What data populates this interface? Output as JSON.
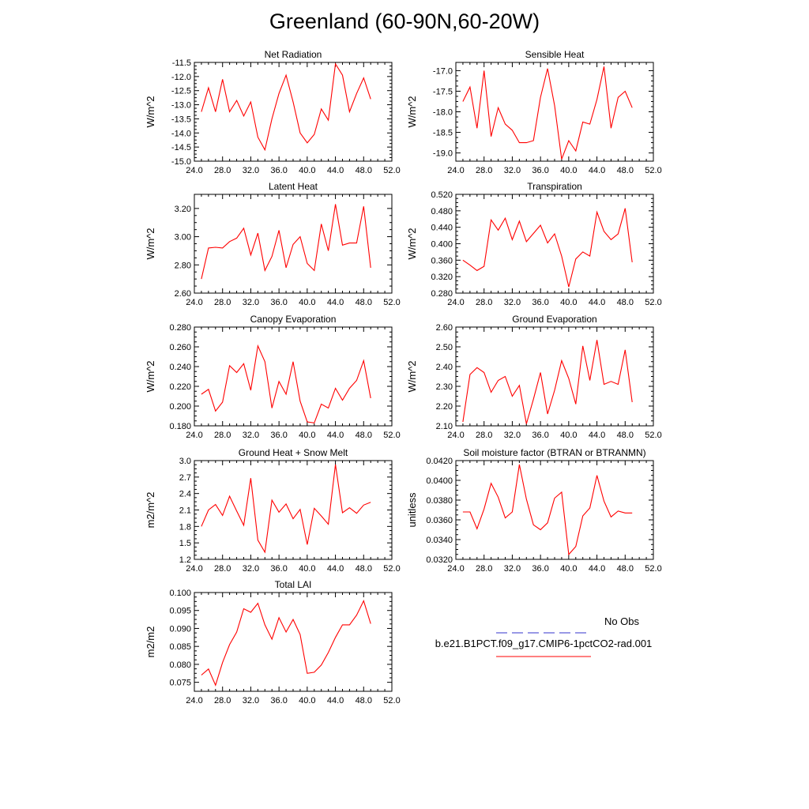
{
  "title": "Greenland (60-90N,60-20W)",
  "legend": {
    "entries": [
      {
        "label": "No Obs",
        "color": "#3333cc",
        "style": "dashed"
      },
      {
        "label": "b.e21.B1PCT.f09_g17.CMIP6-1pctCO2-rad.001",
        "color": "#ff0000",
        "style": "solid"
      }
    ]
  },
  "chart_data": [
    {
      "type": "line",
      "title": "Net Radiation",
      "ylabel": "W/m^2",
      "xlabel": "",
      "xlim": [
        24,
        52
      ],
      "ylim": [
        -15.0,
        -11.5
      ],
      "xticks": [
        "24.0",
        "28.0",
        "32.0",
        "36.0",
        "40.0",
        "44.0",
        "48.0",
        "52.0"
      ],
      "yticks": [
        "-11.5",
        "-12.0",
        "-12.5",
        "-13.0",
        "-13.5",
        "-14.0",
        "-14.5",
        "-15.0"
      ],
      "ytick_values": [
        -11.5,
        -12.0,
        -12.5,
        -13.0,
        -13.5,
        -14.0,
        -14.5,
        -15.0
      ],
      "series": [
        {
          "color": "#ff0000",
          "x": [
            25,
            26,
            27,
            28,
            29,
            30,
            31,
            32,
            33,
            34,
            35,
            36,
            37,
            38,
            39,
            40,
            41,
            42,
            43,
            44,
            45,
            46,
            47,
            48,
            49
          ],
          "values": [
            -13.25,
            -12.4,
            -13.25,
            -12.1,
            -13.25,
            -12.85,
            -13.4,
            -12.9,
            -14.15,
            -14.6,
            -13.5,
            -12.6,
            -11.95,
            -12.9,
            -14.0,
            -14.35,
            -14.05,
            -13.15,
            -13.55,
            -11.55,
            -11.95,
            -13.25,
            -12.6,
            -12.05,
            -12.8
          ]
        }
      ]
    },
    {
      "type": "line",
      "title": "Sensible Heat",
      "ylabel": "W/m^2",
      "xlabel": "",
      "xlim": [
        24,
        52
      ],
      "ylim": [
        -19.2,
        -16.8
      ],
      "xticks": [
        "24.0",
        "28.0",
        "32.0",
        "36.0",
        "40.0",
        "44.0",
        "48.0",
        "52.0"
      ],
      "yticks": [
        "-17.0",
        "-17.5",
        "-18.0",
        "-18.5",
        "-19.0"
      ],
      "ytick_values": [
        -17.0,
        -17.5,
        -18.0,
        -18.5,
        -19.0
      ],
      "series": [
        {
          "color": "#ff0000",
          "x": [
            25,
            26,
            27,
            28,
            29,
            30,
            31,
            32,
            33,
            34,
            35,
            36,
            37,
            38,
            39,
            40,
            41,
            42,
            43,
            44,
            45,
            46,
            47,
            48,
            49
          ],
          "values": [
            -17.75,
            -17.4,
            -18.4,
            -17.0,
            -18.6,
            -17.9,
            -18.3,
            -18.45,
            -18.75,
            -18.75,
            -18.7,
            -17.65,
            -16.95,
            -17.85,
            -19.15,
            -18.7,
            -18.95,
            -18.25,
            -18.3,
            -17.7,
            -16.9,
            -18.4,
            -17.65,
            -17.5,
            -17.9
          ]
        }
      ]
    },
    {
      "type": "line",
      "title": "Latent Heat",
      "ylabel": "W/m^2",
      "xlabel": "",
      "xlim": [
        24,
        52
      ],
      "ylim": [
        2.6,
        3.3
      ],
      "xticks": [
        "24.0",
        "28.0",
        "32.0",
        "36.0",
        "40.0",
        "44.0",
        "48.0",
        "52.0"
      ],
      "yticks": [
        "3.20",
        "3.00",
        "2.80",
        "2.60"
      ],
      "ytick_values": [
        3.2,
        3.0,
        2.8,
        2.6
      ],
      "series": [
        {
          "color": "#ff0000",
          "x": [
            25,
            26,
            27,
            28,
            29,
            30,
            31,
            32,
            33,
            34,
            35,
            36,
            37,
            38,
            39,
            40,
            41,
            42,
            43,
            44,
            45,
            46,
            47,
            48,
            49
          ],
          "values": [
            2.7,
            2.92,
            2.925,
            2.92,
            2.965,
            2.99,
            3.06,
            2.87,
            3.025,
            2.76,
            2.86,
            3.045,
            2.78,
            2.945,
            3.0,
            2.81,
            2.76,
            3.09,
            2.9,
            3.23,
            2.94,
            2.955,
            2.955,
            3.215,
            2.78
          ]
        }
      ]
    },
    {
      "type": "line",
      "title": "Transpiration",
      "ylabel": "W/m^2",
      "xlabel": "",
      "xlim": [
        24,
        52
      ],
      "ylim": [
        0.28,
        0.52
      ],
      "xticks": [
        "24.0",
        "28.0",
        "32.0",
        "36.0",
        "40.0",
        "44.0",
        "48.0",
        "52.0"
      ],
      "yticks": [
        "0.520",
        "0.480",
        "0.440",
        "0.400",
        "0.360",
        "0.320",
        "0.280"
      ],
      "ytick_values": [
        0.52,
        0.48,
        0.44,
        0.4,
        0.36,
        0.32,
        0.28
      ],
      "series": [
        {
          "color": "#ff0000",
          "x": [
            25,
            26,
            27,
            28,
            29,
            30,
            31,
            32,
            33,
            34,
            35,
            36,
            37,
            38,
            39,
            40,
            41,
            42,
            43,
            44,
            45,
            46,
            47,
            48,
            49
          ],
          "values": [
            0.36,
            0.348,
            0.335,
            0.345,
            0.458,
            0.433,
            0.462,
            0.41,
            0.455,
            0.405,
            0.425,
            0.445,
            0.402,
            0.424,
            0.37,
            0.295,
            0.363,
            0.38,
            0.37,
            0.477,
            0.43,
            0.41,
            0.424,
            0.486,
            0.355
          ]
        }
      ]
    },
    {
      "type": "line",
      "title": "Canopy Evaporation",
      "ylabel": "W/m^2",
      "xlabel": "",
      "xlim": [
        24,
        52
      ],
      "ylim": [
        0.18,
        0.28
      ],
      "xticks": [
        "24.0",
        "28.0",
        "32.0",
        "36.0",
        "40.0",
        "44.0",
        "48.0",
        "52.0"
      ],
      "yticks": [
        "0.280",
        "0.260",
        "0.240",
        "0.220",
        "0.200",
        "0.180"
      ],
      "ytick_values": [
        0.28,
        0.26,
        0.24,
        0.22,
        0.2,
        0.18
      ],
      "series": [
        {
          "color": "#ff0000",
          "x": [
            25,
            26,
            27,
            28,
            29,
            30,
            31,
            32,
            33,
            34,
            35,
            36,
            37,
            38,
            39,
            40,
            41,
            42,
            43,
            44,
            45,
            46,
            47,
            48,
            49
          ],
          "values": [
            0.212,
            0.217,
            0.195,
            0.204,
            0.241,
            0.234,
            0.243,
            0.216,
            0.261,
            0.245,
            0.198,
            0.225,
            0.212,
            0.245,
            0.205,
            0.184,
            0.183,
            0.202,
            0.198,
            0.218,
            0.206,
            0.218,
            0.226,
            0.246,
            0.208
          ]
        }
      ]
    },
    {
      "type": "line",
      "title": "Ground Evaporation",
      "ylabel": "W/m^2",
      "xlabel": "",
      "xlim": [
        24,
        52
      ],
      "ylim": [
        2.1,
        2.6
      ],
      "xticks": [
        "24.0",
        "28.0",
        "32.0",
        "36.0",
        "40.0",
        "44.0",
        "48.0",
        "52.0"
      ],
      "yticks": [
        "2.60",
        "2.50",
        "2.40",
        "2.30",
        "2.20",
        "2.10"
      ],
      "ytick_values": [
        2.6,
        2.5,
        2.4,
        2.3,
        2.2,
        2.1
      ],
      "series": [
        {
          "color": "#ff0000",
          "x": [
            25,
            26,
            27,
            28,
            29,
            30,
            31,
            32,
            33,
            34,
            35,
            36,
            37,
            38,
            39,
            40,
            41,
            42,
            43,
            44,
            45,
            46,
            47,
            48,
            49
          ],
          "values": [
            2.12,
            2.36,
            2.395,
            2.37,
            2.27,
            2.33,
            2.35,
            2.25,
            2.305,
            2.11,
            2.235,
            2.37,
            2.16,
            2.28,
            2.43,
            2.34,
            2.21,
            2.505,
            2.33,
            2.535,
            2.31,
            2.325,
            2.31,
            2.485,
            2.22
          ]
        }
      ]
    },
    {
      "type": "line",
      "title": "Ground Heat + Snow Melt",
      "ylabel": "m2/m^2",
      "xlabel": "",
      "xlim": [
        24,
        52
      ],
      "ylim": [
        1.2,
        3.0
      ],
      "xticks": [
        "24.0",
        "28.0",
        "32.0",
        "36.0",
        "40.0",
        "44.0",
        "48.0",
        "52.0"
      ],
      "yticks": [
        "3.0",
        "2.7",
        "2.4",
        "2.1",
        "1.8",
        "1.5",
        "1.2"
      ],
      "ytick_values": [
        3.0,
        2.7,
        2.4,
        2.1,
        1.8,
        1.5,
        1.2
      ],
      "series": [
        {
          "color": "#ff0000",
          "x": [
            25,
            26,
            27,
            28,
            29,
            30,
            31,
            32,
            33,
            34,
            35,
            36,
            37,
            38,
            39,
            40,
            41,
            42,
            43,
            44,
            45,
            46,
            47,
            48,
            49
          ],
          "values": [
            1.8,
            2.1,
            2.2,
            2.0,
            2.35,
            2.08,
            1.82,
            2.68,
            1.55,
            1.33,
            2.28,
            2.06,
            2.21,
            1.94,
            2.11,
            1.47,
            2.13,
            1.99,
            1.84,
            2.93,
            2.05,
            2.14,
            2.04,
            2.19,
            2.24
          ]
        }
      ]
    },
    {
      "type": "line",
      "title": "Soil moisture factor (BTRAN or BTRANMN)",
      "ylabel": "unitless",
      "xlabel": "",
      "xlim": [
        24,
        52
      ],
      "ylim": [
        0.032,
        0.042
      ],
      "xticks": [
        "24.0",
        "28.0",
        "32.0",
        "36.0",
        "40.0",
        "44.0",
        "48.0",
        "52.0"
      ],
      "yticks": [
        "0.0420",
        "0.0400",
        "0.0380",
        "0.0360",
        "0.0340",
        "0.0320"
      ],
      "ytick_values": [
        0.042,
        0.04,
        0.038,
        0.036,
        0.034,
        0.032
      ],
      "series": [
        {
          "color": "#ff0000",
          "x": [
            25,
            26,
            27,
            28,
            29,
            30,
            31,
            32,
            33,
            34,
            35,
            36,
            37,
            38,
            39,
            40,
            41,
            42,
            43,
            44,
            45,
            46,
            47,
            48,
            49
          ],
          "values": [
            0.0368,
            0.0368,
            0.0351,
            0.0371,
            0.0397,
            0.0383,
            0.0362,
            0.0368,
            0.0416,
            0.0381,
            0.0355,
            0.035,
            0.0357,
            0.0382,
            0.0388,
            0.0325,
            0.0333,
            0.0364,
            0.0372,
            0.0405,
            0.0379,
            0.0363,
            0.0369,
            0.0367,
            0.0367
          ]
        }
      ]
    },
    {
      "type": "line",
      "title": "Total LAI",
      "ylabel": "m2/m2",
      "xlabel": "",
      "xlim": [
        24,
        52
      ],
      "ylim": [
        0.0725,
        0.1
      ],
      "xticks": [
        "24.0",
        "28.0",
        "32.0",
        "36.0",
        "40.0",
        "44.0",
        "48.0",
        "52.0"
      ],
      "yticks": [
        "0.100",
        "0.095",
        "0.090",
        "0.085",
        "0.080",
        "0.075"
      ],
      "ytick_values": [
        0.1,
        0.095,
        0.09,
        0.085,
        0.08,
        0.075
      ],
      "series": [
        {
          "color": "#ff0000",
          "x": [
            25,
            26,
            27,
            28,
            29,
            30,
            31,
            32,
            33,
            34,
            35,
            36,
            37,
            38,
            39,
            40,
            41,
            42,
            43,
            44,
            45,
            46,
            47,
            48,
            49
          ],
          "values": [
            0.077,
            0.0787,
            0.0742,
            0.0805,
            0.0855,
            0.089,
            0.0955,
            0.0945,
            0.097,
            0.091,
            0.087,
            0.093,
            0.089,
            0.0925,
            0.0883,
            0.0775,
            0.0778,
            0.0798,
            0.0833,
            0.0875,
            0.091,
            0.091,
            0.0937,
            0.0977,
            0.0913
          ]
        }
      ]
    }
  ]
}
